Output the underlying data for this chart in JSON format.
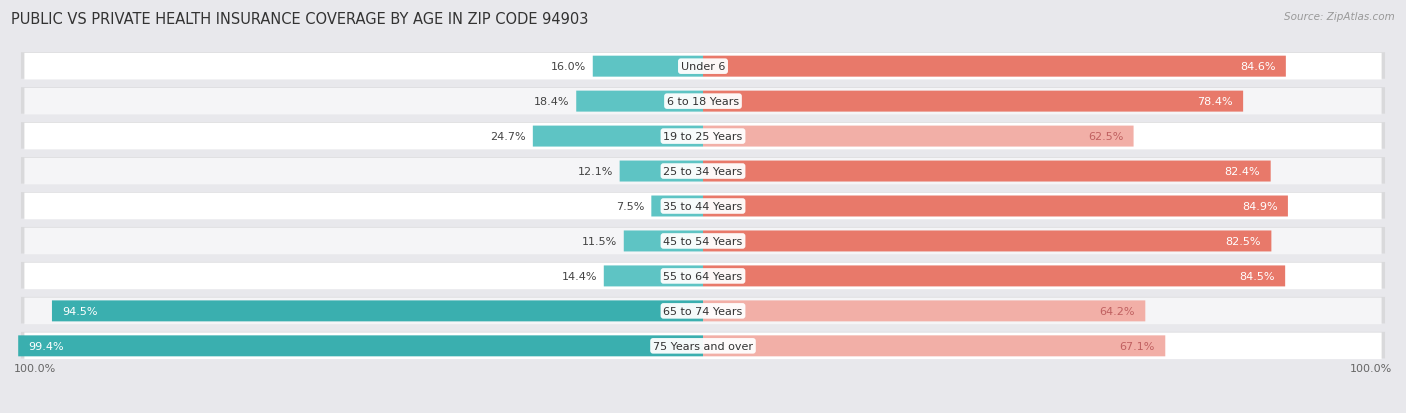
{
  "title": "PUBLIC VS PRIVATE HEALTH INSURANCE COVERAGE BY AGE IN ZIP CODE 94903",
  "source": "Source: ZipAtlas.com",
  "categories": [
    "Under 6",
    "6 to 18 Years",
    "19 to 25 Years",
    "25 to 34 Years",
    "35 to 44 Years",
    "45 to 54 Years",
    "55 to 64 Years",
    "65 to 74 Years",
    "75 Years and over"
  ],
  "public_values": [
    16.0,
    18.4,
    24.7,
    12.1,
    7.5,
    11.5,
    14.4,
    94.5,
    99.4
  ],
  "private_values": [
    84.6,
    78.4,
    62.5,
    82.4,
    84.9,
    82.5,
    84.5,
    64.2,
    67.1
  ],
  "public_color_solid": "#3AAFAF",
  "public_color_light": "#5EC4C4",
  "private_color_solid": "#E8796A",
  "private_color_light": "#F2AFA7",
  "background_color": "#e8e8ec",
  "row_color_odd": "#f5f5f7",
  "row_color_even": "#ffffff",
  "title_fontsize": 10.5,
  "label_fontsize": 8,
  "value_fontsize": 8,
  "legend_fontsize": 8,
  "bar_height": 0.6,
  "private_threshold": 70,
  "public_threshold": 50
}
